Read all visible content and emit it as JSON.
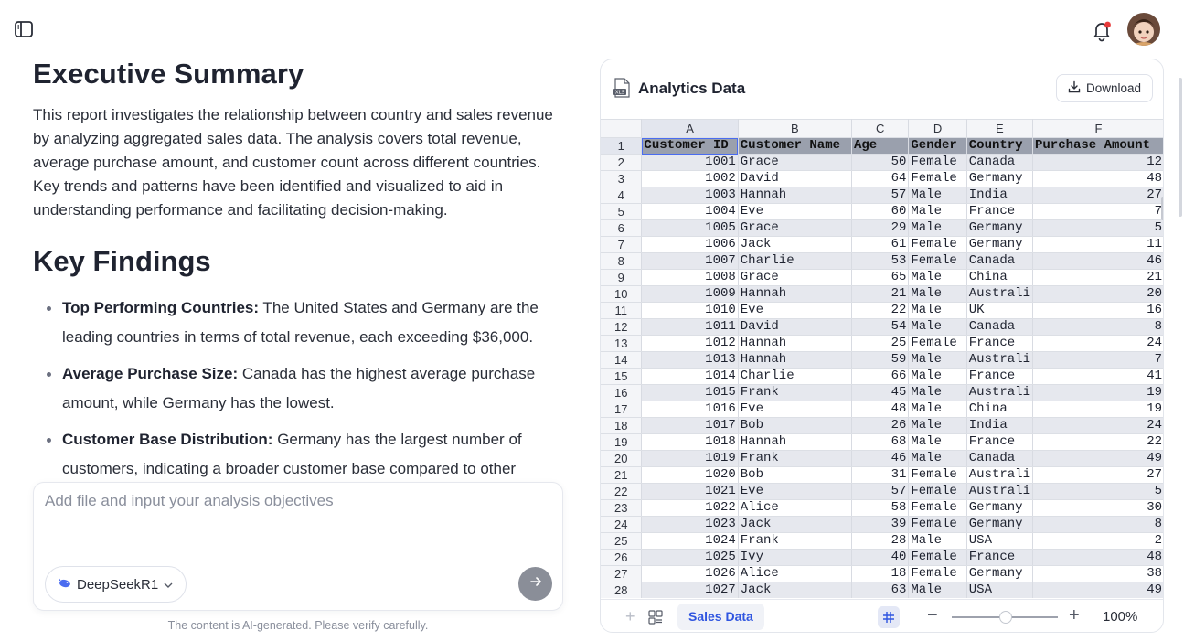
{
  "report": {
    "title": "Executive Summary",
    "summary": "This report investigates the relationship between country and sales revenue by analyzing aggregated sales data. The analysis covers total revenue, average purchase amount, and customer count across different countries. Key trends and patterns have been identified and visualized to aid in understanding performance and facilitating decision-making.",
    "findings_title": "Key Findings",
    "findings": [
      {
        "label": "Top Performing Countries:",
        "text": " The United States and Germany are the leading countries in terms of total revenue, each exceeding $36,000."
      },
      {
        "label": "Average Purchase Size:",
        "text": " Canada has the highest average purchase amount, while Germany has the lowest."
      },
      {
        "label": "Customer Base Distribution:",
        "text": " Germany has the largest number of customers, indicating a broader customer base compared to other"
      }
    ]
  },
  "composer": {
    "placeholder": "Add file and input your analysis objectives",
    "model": "DeepSeekR1"
  },
  "disclaimer": "The content is AI-generated. Please verify carefully.",
  "panel": {
    "title": "Analytics Data",
    "download_label": "Download",
    "columns": [
      "A",
      "B",
      "C",
      "D",
      "E",
      "F"
    ],
    "header_row": [
      "Customer ID",
      "Customer Name",
      "Age",
      "Gender",
      "Country",
      "Purchase Amount"
    ],
    "rows": [
      [
        "1001",
        "Grace",
        "50",
        "Female",
        "Canada",
        "12"
      ],
      [
        "1002",
        "David",
        "64",
        "Female",
        "Germany",
        "48"
      ],
      [
        "1003",
        "Hannah",
        "57",
        "Male",
        "India",
        "27"
      ],
      [
        "1004",
        "Eve",
        "60",
        "Male",
        "France",
        "7"
      ],
      [
        "1005",
        "Grace",
        "29",
        "Male",
        "Germany",
        "5"
      ],
      [
        "1006",
        "Jack",
        "61",
        "Female",
        "Germany",
        "11"
      ],
      [
        "1007",
        "Charlie",
        "53",
        "Female",
        "Canada",
        "46"
      ],
      [
        "1008",
        "Grace",
        "65",
        "Male",
        "China",
        "21"
      ],
      [
        "1009",
        "Hannah",
        "21",
        "Male",
        "Australi",
        "20"
      ],
      [
        "1010",
        "Eve",
        "22",
        "Male",
        "UK",
        "16"
      ],
      [
        "1011",
        "David",
        "54",
        "Male",
        "Canada",
        "8"
      ],
      [
        "1012",
        "Hannah",
        "25",
        "Female",
        "France",
        "24"
      ],
      [
        "1013",
        "Hannah",
        "59",
        "Male",
        "Australi",
        "7"
      ],
      [
        "1014",
        "Charlie",
        "66",
        "Male",
        "France",
        "41"
      ],
      [
        "1015",
        "Frank",
        "45",
        "Male",
        "Australi",
        "19"
      ],
      [
        "1016",
        "Eve",
        "48",
        "Male",
        "China",
        "19"
      ],
      [
        "1017",
        "Bob",
        "26",
        "Male",
        "India",
        "24"
      ],
      [
        "1018",
        "Hannah",
        "68",
        "Male",
        "France",
        "22"
      ],
      [
        "1019",
        "Frank",
        "46",
        "Male",
        "Canada",
        "49"
      ],
      [
        "1020",
        "Bob",
        "31",
        "Female",
        "Australi",
        "27"
      ],
      [
        "1021",
        "Eve",
        "57",
        "Female",
        "Australi",
        "5"
      ],
      [
        "1022",
        "Alice",
        "58",
        "Female",
        "Germany",
        "30"
      ],
      [
        "1023",
        "Jack",
        "39",
        "Female",
        "Germany",
        "8"
      ],
      [
        "1024",
        "Frank",
        "28",
        "Male",
        "USA",
        "2"
      ],
      [
        "1025",
        "Ivy",
        "40",
        "Female",
        "France",
        "48"
      ],
      [
        "1026",
        "Alice",
        "18",
        "Female",
        "Germany",
        "38"
      ],
      [
        "1027",
        "Jack",
        "63",
        "Male",
        "USA",
        "49"
      ]
    ],
    "sheet_tab": "Sales Data",
    "zoom": "100%"
  },
  "colors": {
    "accent": "#2f55e0",
    "header_fill": "#9aa0ad",
    "stripe_fill": "#e6e8ee",
    "notification_dot": "#e83a3a"
  },
  "icons": [
    "sidebar-toggle-icon",
    "bell-icon",
    "xls-file-icon",
    "download-icon",
    "whale-icon",
    "chevron-down-icon",
    "arrow-right-icon",
    "sheets-list-icon",
    "grid-icon"
  ]
}
